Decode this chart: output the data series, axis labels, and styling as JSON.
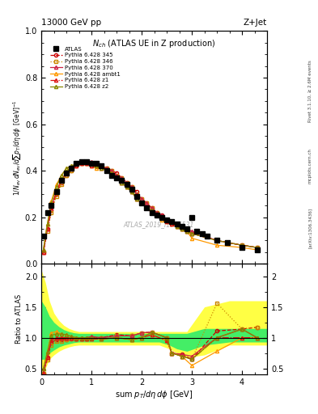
{
  "title_top": "13000 GeV pp",
  "title_top_right": "Z+Jet",
  "plot_title": "Nch (ATLAS UE in Z production)",
  "watermark": "ATLAS_2019_I1736531",
  "rivet_label": "Rivet 3.1.10, ≥ 2.6M events",
  "arxiv_label": "[arXiv:1306.3436]",
  "mcplots_label": "mcplots.cern.ch",
  "xlabel": "sum p_T/dη dϕ [GeV]",
  "ylabel_ratio": "Ratio to ATLAS",
  "xlim": [
    0,
    4.5
  ],
  "ylim_main": [
    0,
    1.0
  ],
  "ylim_ratio": [
    0.4,
    2.2
  ],
  "atlas_x": [
    0.04,
    0.12,
    0.2,
    0.3,
    0.4,
    0.5,
    0.6,
    0.7,
    0.8,
    0.9,
    1.0,
    1.1,
    1.2,
    1.3,
    1.4,
    1.5,
    1.6,
    1.7,
    1.8,
    1.9,
    2.0,
    2.1,
    2.2,
    2.3,
    2.4,
    2.5,
    2.6,
    2.7,
    2.8,
    2.9,
    3.0,
    3.1,
    3.2,
    3.3,
    3.5,
    3.7,
    4.0,
    4.3
  ],
  "atlas_y": [
    0.12,
    0.22,
    0.25,
    0.31,
    0.36,
    0.39,
    0.41,
    0.43,
    0.44,
    0.44,
    0.43,
    0.43,
    0.42,
    0.4,
    0.38,
    0.37,
    0.36,
    0.34,
    0.32,
    0.29,
    0.26,
    0.24,
    0.22,
    0.21,
    0.2,
    0.19,
    0.18,
    0.17,
    0.16,
    0.15,
    0.2,
    0.14,
    0.13,
    0.12,
    0.1,
    0.09,
    0.07,
    0.06
  ],
  "lines": [
    {
      "label": "Pythia 6.428 345",
      "color": "#cc0000",
      "linestyle": "--",
      "marker": "o",
      "markersize": 3,
      "fillstyle": "none",
      "x": [
        0.04,
        0.12,
        0.2,
        0.3,
        0.4,
        0.5,
        0.6,
        0.7,
        0.8,
        0.9,
        1.0,
        1.1,
        1.2,
        1.3,
        1.4,
        1.5,
        1.6,
        1.7,
        1.8,
        1.9,
        2.0,
        2.1,
        2.2,
        2.3,
        2.4,
        2.5,
        2.6,
        2.7,
        2.8,
        2.9,
        3.0,
        3.5,
        4.0,
        4.3
      ],
      "y": [
        0.05,
        0.15,
        0.23,
        0.3,
        0.35,
        0.38,
        0.4,
        0.42,
        0.43,
        0.43,
        0.43,
        0.42,
        0.42,
        0.41,
        0.4,
        0.39,
        0.37,
        0.35,
        0.33,
        0.31,
        0.28,
        0.26,
        0.24,
        0.22,
        0.21,
        0.19,
        0.18,
        0.17,
        0.16,
        0.15,
        0.13,
        0.1,
        0.08,
        0.07
      ]
    },
    {
      "label": "Pythia 6.428 346",
      "color": "#cc8800",
      "linestyle": ":",
      "marker": "s",
      "markersize": 3,
      "fillstyle": "none",
      "x": [
        0.04,
        0.12,
        0.2,
        0.3,
        0.4,
        0.5,
        0.6,
        0.7,
        0.8,
        0.9,
        1.0,
        1.1,
        1.2,
        1.3,
        1.4,
        1.5,
        1.6,
        1.7,
        1.8,
        1.9,
        2.0,
        2.1,
        2.2,
        2.3,
        2.4,
        2.5,
        2.6,
        2.7,
        2.8,
        2.9,
        3.0,
        3.5,
        4.0,
        4.3
      ],
      "y": [
        0.05,
        0.14,
        0.22,
        0.29,
        0.34,
        0.38,
        0.4,
        0.42,
        0.43,
        0.43,
        0.43,
        0.42,
        0.42,
        0.41,
        0.4,
        0.38,
        0.37,
        0.35,
        0.33,
        0.3,
        0.28,
        0.26,
        0.24,
        0.22,
        0.2,
        0.19,
        0.18,
        0.16,
        0.15,
        0.14,
        0.13,
        0.1,
        0.08,
        0.07
      ]
    },
    {
      "label": "Pythia 6.428 370",
      "color": "#cc2244",
      "linestyle": "-",
      "marker": "^",
      "markersize": 3,
      "fillstyle": "none",
      "x": [
        0.04,
        0.12,
        0.2,
        0.3,
        0.4,
        0.5,
        0.6,
        0.7,
        0.8,
        0.9,
        1.0,
        1.1,
        1.2,
        1.3,
        1.4,
        1.5,
        1.6,
        1.7,
        1.8,
        1.9,
        2.0,
        2.1,
        2.2,
        2.3,
        2.4,
        2.5,
        2.6,
        2.7,
        2.8,
        2.9,
        3.0,
        3.5,
        4.0,
        4.3
      ],
      "y": [
        0.05,
        0.15,
        0.24,
        0.31,
        0.36,
        0.39,
        0.41,
        0.43,
        0.44,
        0.44,
        0.44,
        0.43,
        0.42,
        0.41,
        0.4,
        0.38,
        0.37,
        0.35,
        0.33,
        0.3,
        0.28,
        0.26,
        0.24,
        0.22,
        0.21,
        0.19,
        0.18,
        0.17,
        0.16,
        0.15,
        0.14,
        0.1,
        0.08,
        0.07
      ]
    },
    {
      "label": "Pythia 6.428 ambt1",
      "color": "#ff9900",
      "linestyle": "-",
      "marker": "^",
      "markersize": 3,
      "fillstyle": "none",
      "x": [
        0.04,
        0.12,
        0.2,
        0.3,
        0.4,
        0.5,
        0.6,
        0.7,
        0.8,
        0.9,
        1.0,
        1.1,
        1.2,
        1.3,
        1.4,
        1.5,
        1.6,
        1.7,
        1.8,
        1.9,
        2.0,
        2.1,
        2.2,
        2.3,
        2.4,
        2.5,
        2.6,
        2.7,
        2.8,
        2.9,
        3.0,
        3.5,
        4.0,
        4.3
      ],
      "y": [
        0.06,
        0.17,
        0.27,
        0.34,
        0.38,
        0.41,
        0.42,
        0.43,
        0.43,
        0.43,
        0.42,
        0.41,
        0.41,
        0.4,
        0.39,
        0.37,
        0.35,
        0.33,
        0.31,
        0.28,
        0.26,
        0.24,
        0.22,
        0.21,
        0.19,
        0.18,
        0.17,
        0.16,
        0.15,
        0.14,
        0.11,
        0.08,
        0.07,
        0.06
      ]
    },
    {
      "label": "Pythia 6.428 z1",
      "color": "#dd1111",
      "linestyle": "-.",
      "marker": "^",
      "markersize": 3,
      "fillstyle": "none",
      "x": [
        0.04,
        0.12,
        0.2,
        0.3,
        0.4,
        0.5,
        0.6,
        0.7,
        0.8,
        0.9,
        1.0,
        1.1,
        1.2,
        1.3,
        1.4,
        1.5,
        1.6,
        1.7,
        1.8,
        1.9,
        2.0,
        2.1,
        2.2,
        2.3,
        2.4,
        2.5,
        2.6,
        2.7,
        2.8,
        2.9,
        3.0,
        3.5,
        4.0,
        4.3
      ],
      "y": [
        0.05,
        0.15,
        0.24,
        0.31,
        0.36,
        0.39,
        0.41,
        0.42,
        0.43,
        0.43,
        0.42,
        0.42,
        0.41,
        0.4,
        0.39,
        0.37,
        0.35,
        0.33,
        0.31,
        0.28,
        0.26,
        0.24,
        0.22,
        0.21,
        0.2,
        0.18,
        0.17,
        0.16,
        0.15,
        0.14,
        0.13,
        0.1,
        0.08,
        0.07
      ]
    },
    {
      "label": "Pythia 6.428 z2",
      "color": "#888800",
      "linestyle": "-",
      "marker": "^",
      "markersize": 3,
      "fillstyle": "none",
      "x": [
        0.04,
        0.12,
        0.2,
        0.3,
        0.4,
        0.5,
        0.6,
        0.7,
        0.8,
        0.9,
        1.0,
        1.1,
        1.2,
        1.3,
        1.4,
        1.5,
        1.6,
        1.7,
        1.8,
        1.9,
        2.0,
        2.1,
        2.2,
        2.3,
        2.4,
        2.5,
        2.6,
        2.7,
        2.8,
        2.9,
        3.0,
        3.5,
        4.0,
        4.3
      ],
      "y": [
        0.06,
        0.17,
        0.26,
        0.33,
        0.38,
        0.41,
        0.42,
        0.43,
        0.44,
        0.44,
        0.43,
        0.42,
        0.41,
        0.4,
        0.39,
        0.37,
        0.35,
        0.33,
        0.31,
        0.28,
        0.26,
        0.24,
        0.23,
        0.21,
        0.2,
        0.19,
        0.18,
        0.16,
        0.15,
        0.14,
        0.13,
        0.1,
        0.08,
        0.07
      ]
    }
  ],
  "ratio_lines": [
    {
      "label": "Pythia 6.428 345",
      "color": "#cc0000",
      "linestyle": "--",
      "marker": "o",
      "markersize": 3,
      "x": [
        0.04,
        0.12,
        0.2,
        0.3,
        0.4,
        0.5,
        0.6,
        0.7,
        0.8,
        0.9,
        1.0,
        1.2,
        1.5,
        1.8,
        2.0,
        2.2,
        2.5,
        2.6,
        2.8,
        3.0,
        3.5,
        4.0,
        4.3
      ],
      "y": [
        0.42,
        0.68,
        0.92,
        0.97,
        0.97,
        0.97,
        0.98,
        0.98,
        0.98,
        0.98,
        1.0,
        1.0,
        1.05,
        1.03,
        1.08,
        1.09,
        1.0,
        0.75,
        0.73,
        0.65,
        1.11,
        1.14,
        1.17
      ]
    },
    {
      "label": "Pythia 6.428 346",
      "color": "#cc8800",
      "linestyle": ":",
      "marker": "s",
      "markersize": 3,
      "x": [
        0.04,
        0.12,
        0.2,
        0.3,
        0.4,
        0.5,
        0.6,
        0.7,
        0.8,
        0.9,
        1.0,
        1.2,
        1.5,
        1.8,
        2.0,
        2.2,
        2.5,
        2.6,
        2.8,
        3.0,
        3.5,
        4.0,
        4.3
      ],
      "y": [
        0.42,
        0.64,
        0.88,
        0.94,
        0.94,
        0.97,
        0.98,
        0.98,
        0.98,
        0.98,
        1.0,
        1.0,
        1.03,
        1.03,
        1.08,
        1.09,
        1.0,
        0.75,
        0.7,
        0.65,
        1.56,
        1.14,
        1.17
      ]
    },
    {
      "label": "Pythia 6.428 370",
      "color": "#cc2244",
      "linestyle": "-",
      "marker": "^",
      "markersize": 3,
      "x": [
        0.04,
        0.12,
        0.2,
        0.3,
        0.4,
        0.5,
        0.6,
        0.7,
        0.8,
        0.9,
        1.0,
        1.2,
        1.5,
        1.8,
        2.0,
        2.2,
        2.5,
        2.6,
        2.8,
        3.0,
        3.5,
        4.0,
        4.3
      ],
      "y": [
        0.42,
        0.68,
        0.96,
        1.0,
        1.0,
        1.0,
        1.0,
        1.0,
        1.0,
        1.0,
        1.02,
        1.0,
        1.03,
        1.03,
        1.08,
        1.09,
        1.0,
        0.75,
        0.73,
        0.7,
        1.0,
        1.14,
        1.0
      ]
    },
    {
      "label": "Pythia 6.428 ambt1",
      "color": "#ff9900",
      "linestyle": "-",
      "marker": "^",
      "markersize": 3,
      "x": [
        0.04,
        0.12,
        0.2,
        0.3,
        0.4,
        0.5,
        0.6,
        0.7,
        0.8,
        0.9,
        1.0,
        1.2,
        1.5,
        1.8,
        2.0,
        2.2,
        2.5,
        2.6,
        2.8,
        3.0,
        3.5,
        4.0,
        4.3
      ],
      "y": [
        0.5,
        0.77,
        1.08,
        1.1,
        1.06,
        1.05,
        1.02,
        1.0,
        0.98,
        0.98,
        0.98,
        0.98,
        1.0,
        0.97,
        1.0,
        1.05,
        0.95,
        0.75,
        0.7,
        0.55,
        0.78,
        1.0,
        1.0
      ]
    },
    {
      "label": "Pythia 6.428 z1",
      "color": "#dd1111",
      "linestyle": "-.",
      "marker": "^",
      "markersize": 3,
      "x": [
        0.04,
        0.12,
        0.2,
        0.3,
        0.4,
        0.5,
        0.6,
        0.7,
        0.8,
        0.9,
        1.0,
        1.2,
        1.5,
        1.8,
        2.0,
        2.2,
        2.5,
        2.6,
        2.8,
        3.0,
        3.5,
        4.0,
        4.3
      ],
      "y": [
        0.42,
        0.68,
        0.96,
        1.0,
        1.0,
        1.0,
        1.0,
        0.98,
        0.98,
        0.98,
        0.98,
        0.98,
        1.0,
        0.97,
        1.0,
        1.05,
        0.95,
        0.75,
        0.7,
        0.65,
        1.0,
        1.0,
        1.0
      ]
    },
    {
      "label": "Pythia 6.428 z2",
      "color": "#888800",
      "linestyle": "-",
      "marker": "^",
      "markersize": 3,
      "x": [
        0.04,
        0.12,
        0.2,
        0.3,
        0.4,
        0.5,
        0.6,
        0.7,
        0.8,
        0.9,
        1.0,
        1.2,
        1.5,
        1.8,
        2.0,
        2.2,
        2.5,
        2.6,
        2.8,
        3.0,
        3.5,
        4.0,
        4.3
      ],
      "y": [
        0.5,
        0.77,
        1.04,
        1.06,
        1.06,
        1.05,
        1.02,
        1.0,
        1.0,
        1.0,
        1.0,
        0.98,
        1.0,
        0.97,
        1.0,
        1.09,
        1.0,
        0.75,
        0.7,
        0.65,
        1.0,
        1.14,
        1.0
      ]
    }
  ],
  "yellow_band_x": [
    0.0,
    0.08,
    0.16,
    0.25,
    0.35,
    0.45,
    0.55,
    0.65,
    0.75,
    0.85,
    0.95,
    1.1,
    1.35,
    1.65,
    1.9,
    2.1,
    2.35,
    2.55,
    2.7,
    2.9,
    3.25,
    3.75,
    4.15,
    4.5
  ],
  "yellow_band_lo": [
    0.5,
    0.5,
    0.65,
    0.72,
    0.78,
    0.82,
    0.85,
    0.87,
    0.88,
    0.88,
    0.88,
    0.88,
    0.88,
    0.88,
    0.88,
    0.88,
    0.88,
    0.82,
    0.75,
    0.68,
    0.72,
    0.88,
    0.88,
    0.88
  ],
  "yellow_band_hi": [
    2.1,
    1.9,
    1.6,
    1.4,
    1.28,
    1.2,
    1.15,
    1.12,
    1.1,
    1.1,
    1.1,
    1.1,
    1.1,
    1.1,
    1.1,
    1.1,
    1.1,
    1.1,
    1.1,
    1.1,
    1.5,
    1.6,
    1.6,
    1.6
  ],
  "green_band_x": [
    0.0,
    0.08,
    0.16,
    0.25,
    0.35,
    0.45,
    0.55,
    0.65,
    0.75,
    0.85,
    0.95,
    1.1,
    1.35,
    1.65,
    1.9,
    2.1,
    2.35,
    2.55,
    2.7,
    2.9,
    3.25,
    3.75,
    4.15,
    4.5
  ],
  "green_band_lo": [
    0.65,
    0.65,
    0.75,
    0.8,
    0.85,
    0.88,
    0.9,
    0.92,
    0.93,
    0.93,
    0.93,
    0.93,
    0.93,
    0.93,
    0.93,
    0.93,
    0.93,
    0.88,
    0.82,
    0.78,
    0.88,
    0.93,
    0.93,
    0.93
  ],
  "green_band_hi": [
    1.6,
    1.5,
    1.35,
    1.25,
    1.18,
    1.13,
    1.1,
    1.08,
    1.07,
    1.07,
    1.07,
    1.07,
    1.07,
    1.07,
    1.07,
    1.07,
    1.07,
    1.07,
    1.07,
    1.07,
    1.15,
    1.15,
    1.15,
    1.15
  ]
}
